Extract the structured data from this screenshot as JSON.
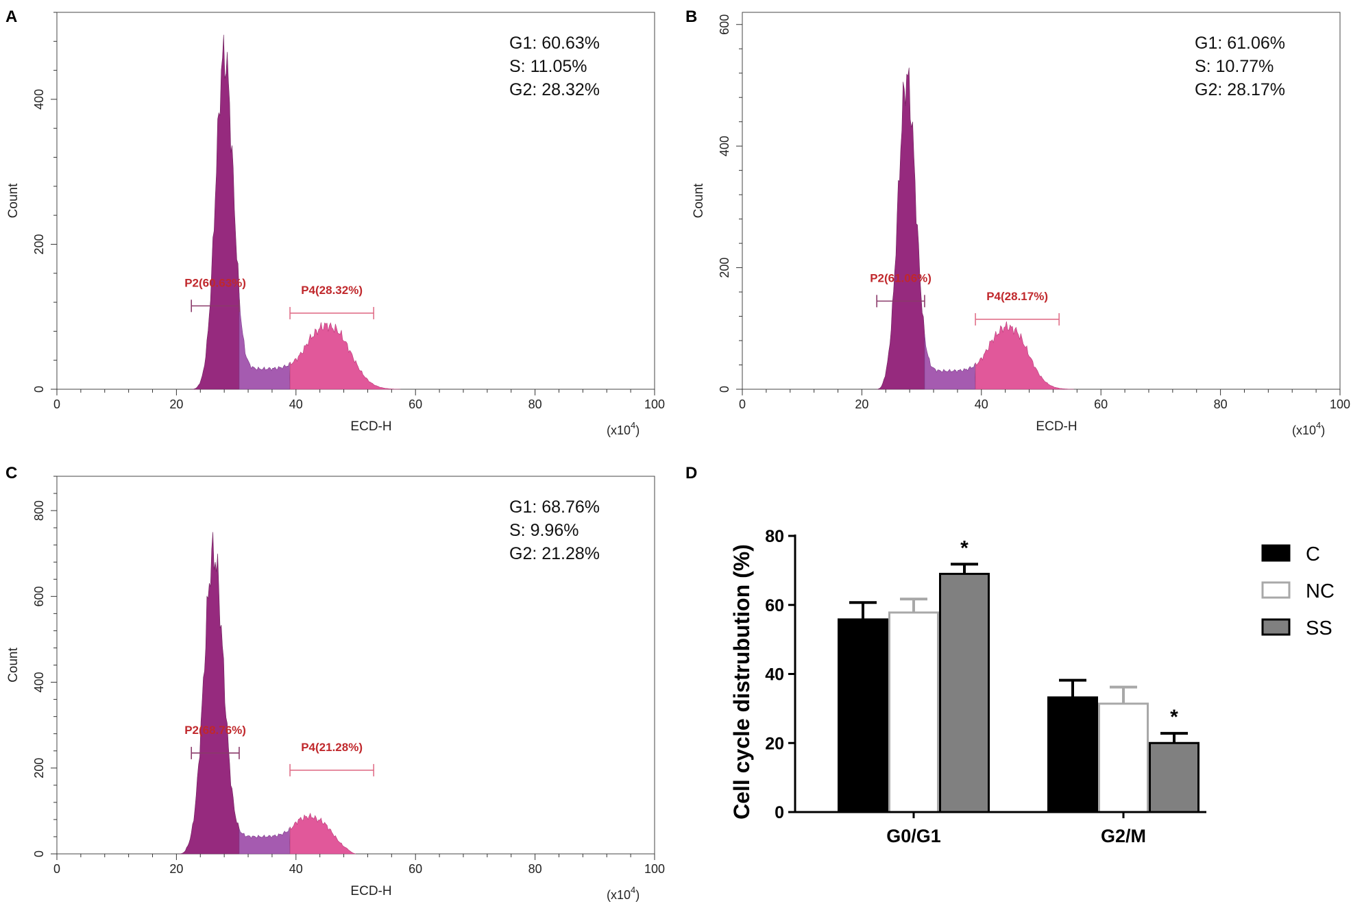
{
  "chart_data": [
    {
      "panel": "A",
      "type": "histogram",
      "xlabel": "ECD-H",
      "ylabel": "Count",
      "x_scale_label": "(x10",
      "x_scale_exp": "4",
      "x_scale_close": ")",
      "xlim": [
        0,
        100
      ],
      "ylim": [
        0,
        520
      ],
      "xticks": [
        "0",
        "20",
        "40",
        "60",
        "80",
        "100"
      ],
      "yticks": [
        "0",
        "200",
        "400"
      ],
      "ytick_values": [
        0,
        200,
        400
      ],
      "stats": [
        "G1: 60.63%",
        "S: 11.05%",
        "G2: 28.32%"
      ],
      "gates": [
        {
          "label": "P2(60.63%)",
          "x_range": [
            22.5,
            30.5
          ],
          "y_level": 115
        },
        {
          "label": "P4(28.32%)",
          "x_range": [
            39,
            53
          ],
          "y_level": 105
        }
      ],
      "peaks": [
        {
          "center": 28,
          "sd": 1.45,
          "height": 460
        },
        {
          "center": 46,
          "sd": 3.1,
          "height": 85
        }
      ],
      "s_phase_level": 28,
      "curve_range": [
        22.5,
        57.5
      ]
    },
    {
      "panel": "B",
      "type": "histogram",
      "xlabel": "ECD-H",
      "ylabel": "Count",
      "x_scale_label": "(x10",
      "x_scale_exp": "4",
      "x_scale_close": ")",
      "xlim": [
        0,
        100
      ],
      "ylim": [
        0,
        620
      ],
      "xticks": [
        "0",
        "20",
        "40",
        "60",
        "80",
        "100"
      ],
      "yticks": [
        "0",
        "200",
        "400",
        "600"
      ],
      "ytick_values": [
        0,
        200,
        400,
        600
      ],
      "stats": [
        "G1: 61.06%",
        "S: 10.77%",
        "G2: 28.17%"
      ],
      "gates": [
        {
          "label": "P2(61.06%)",
          "x_range": [
            22.5,
            30.5
          ],
          "y_level": 145
        },
        {
          "label": "P4(28.17%)",
          "x_range": [
            39,
            53
          ],
          "y_level": 115
        }
      ],
      "peaks": [
        {
          "center": 27.5,
          "sd": 1.45,
          "height": 510
        },
        {
          "center": 45,
          "sd": 2.8,
          "height": 100
        }
      ],
      "s_phase_level": 30,
      "curve_range": [
        22.5,
        55.5
      ]
    },
    {
      "panel": "C",
      "type": "histogram",
      "xlabel": "ECD-H",
      "ylabel": "Count",
      "x_scale_label": "(x10",
      "x_scale_exp": "4",
      "x_scale_close": ")",
      "xlim": [
        0,
        100
      ],
      "ylim": [
        0,
        880
      ],
      "xticks": [
        "0",
        "20",
        "40",
        "60",
        "80",
        "100"
      ],
      "yticks": [
        "0",
        "200",
        "400",
        "600",
        "800"
      ],
      "ytick_values": [
        0,
        200,
        400,
        600,
        800
      ],
      "stats": [
        "G1: 68.76%",
        "S: 9.96%",
        "G2: 21.28%"
      ],
      "gates": [
        {
          "label": "P2(68.76%)",
          "x_range": [
            22.5,
            30.5
          ],
          "y_level": 235
        },
        {
          "label": "P4(21.28%)",
          "x_range": [
            39,
            53
          ],
          "y_level": 195
        }
      ],
      "peaks": [
        {
          "center": 26.2,
          "sd": 1.6,
          "height": 700
        },
        {
          "center": 43.5,
          "sd": 2.6,
          "height": 80
        }
      ],
      "s_phase_level": 40,
      "curve_range": [
        20.5,
        50
      ]
    },
    {
      "panel": "D",
      "type": "bar",
      "title": "",
      "xlabel": "",
      "ylabel": "Cell cycle distrubution (%)",
      "ylim": [
        0,
        80
      ],
      "yticks": [
        "0",
        "20",
        "40",
        "60",
        "80"
      ],
      "ytick_values": [
        0,
        20,
        40,
        60,
        80
      ],
      "categories": [
        "G0/G1",
        "G2/M"
      ],
      "series": [
        {
          "name": "C",
          "fill": "#000000",
          "stroke": "#000000",
          "values": [
            55.8,
            33.2
          ],
          "errors": [
            4.9,
            5.0
          ],
          "significance": [
            "",
            ""
          ]
        },
        {
          "name": "NC",
          "fill": "#ffffff",
          "stroke": "#a8a8a8",
          "values": [
            57.8,
            31.4
          ],
          "errors": [
            3.9,
            4.8
          ],
          "significance": [
            "",
            ""
          ]
        },
        {
          "name": "SS",
          "fill": "#808080",
          "stroke": "#000000",
          "values": [
            69.0,
            20.0
          ],
          "errors": [
            2.8,
            2.8
          ],
          "significance": [
            "*",
            "*"
          ]
        }
      ],
      "legend_position": "right"
    }
  ],
  "panel_labels": [
    "A",
    "B",
    "C",
    "D"
  ],
  "colors": {
    "g1_fill": "#962a7e",
    "s_fill": "#a55bb0",
    "g2_fill": "#e1589a",
    "gate_p2": "#8a3a6a",
    "gate_p4": "#e0708a",
    "gate_text": "#c0282c"
  }
}
